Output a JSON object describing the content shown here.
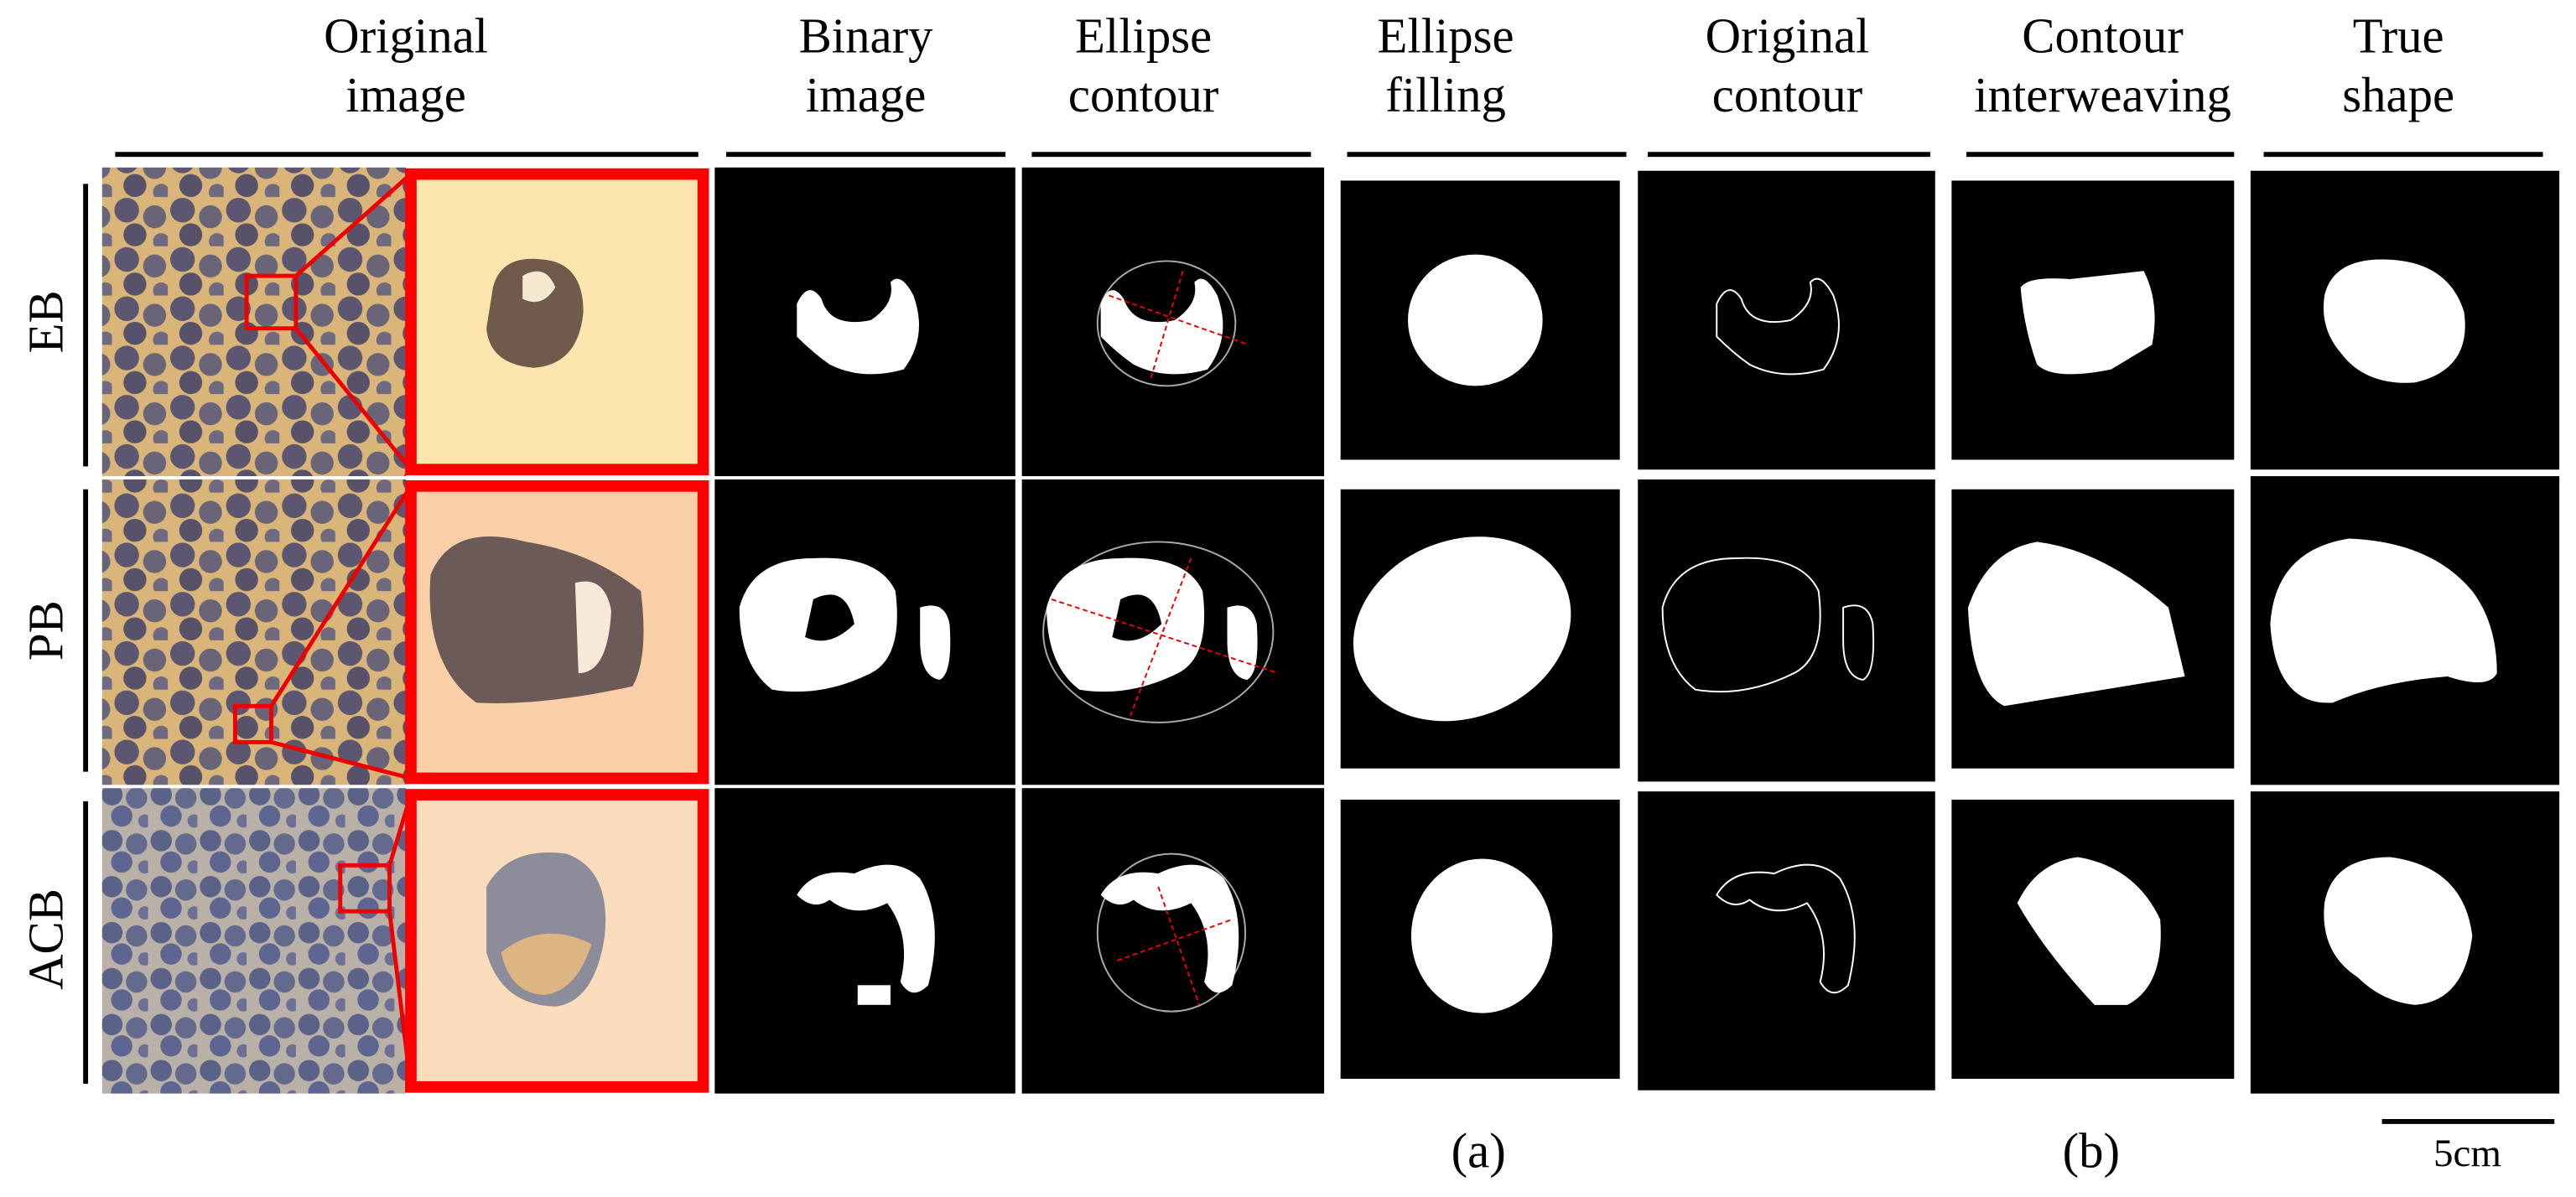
{
  "columns": [
    {
      "lines": [
        "Original",
        "image"
      ]
    },
    {
      "lines": [
        "Binary",
        "image"
      ]
    },
    {
      "lines": [
        "Ellipse",
        "contour"
      ]
    },
    {
      "lines": [
        "Ellipse",
        "filling"
      ]
    },
    {
      "lines": [
        "Original",
        "contour"
      ]
    },
    {
      "lines": [
        "Contour",
        "interweaving"
      ]
    },
    {
      "lines": [
        "True",
        "shape"
      ]
    }
  ],
  "rows": [
    "EB",
    "PB",
    "ACB"
  ],
  "captions": [
    "(a)",
    "(b)"
  ],
  "scale_bar": "5cm"
}
